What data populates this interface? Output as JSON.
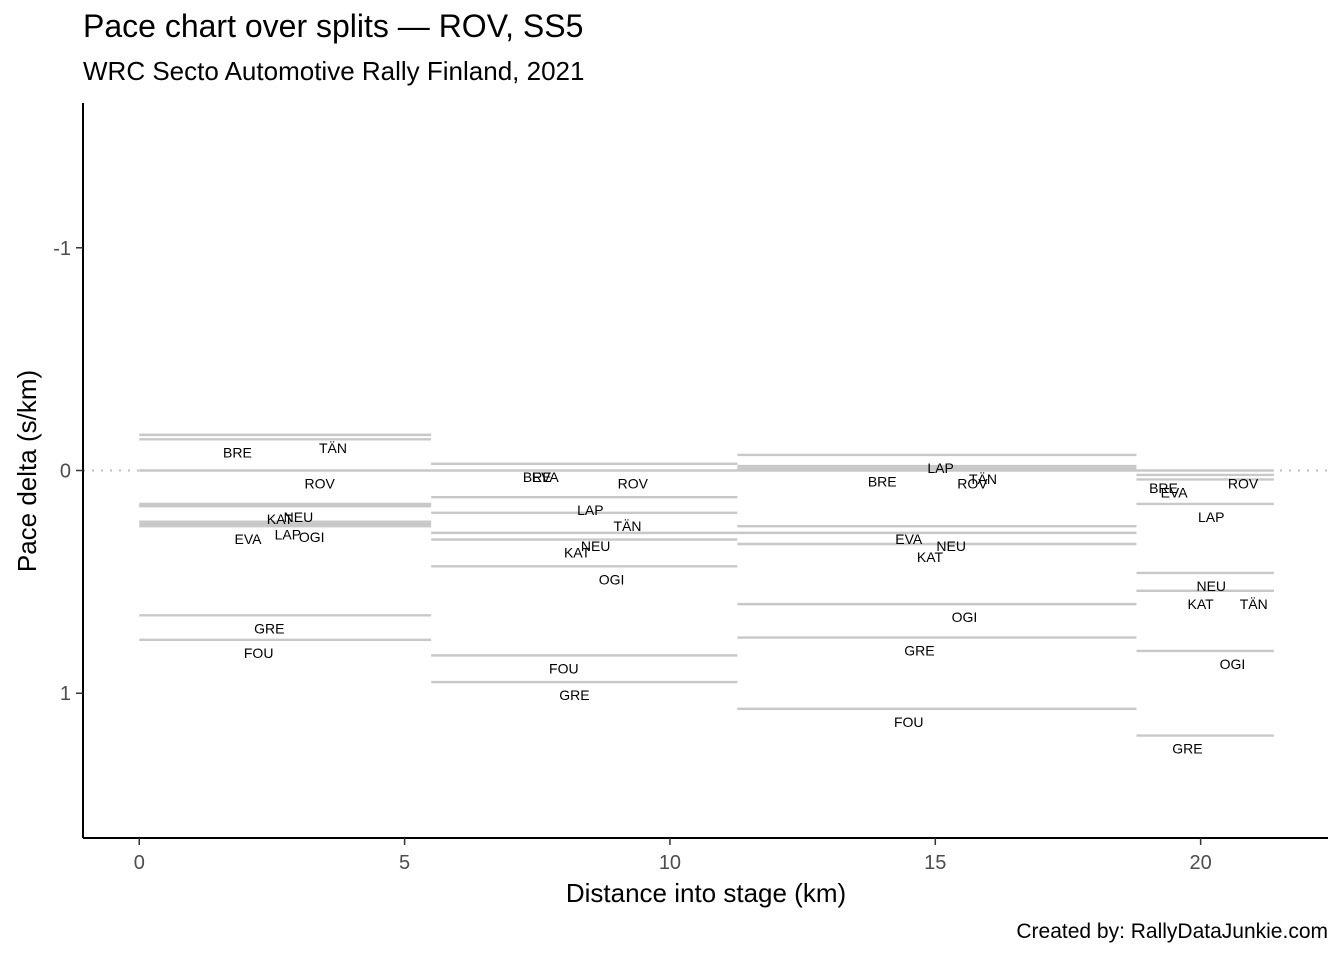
{
  "chart_data": {
    "type": "line",
    "title": "Pace chart over splits — ROV, SS5",
    "subtitle": "WRC Secto Automotive Rally Finland, 2021",
    "xlabel": "Distance into stage (km)",
    "ylabel": "Pace delta (s/km)",
    "caption": "Created by: RallyDataJunkie.com",
    "xlim": [
      -1.06,
      22.4
    ],
    "ylim": [
      1.65,
      -1.65
    ],
    "y_reversed": true,
    "x_ticks": [
      0,
      5,
      10,
      15,
      20
    ],
    "y_ticks": [
      -1,
      0,
      1
    ],
    "reference_line": {
      "y": 0,
      "style": "dotted"
    },
    "split_boundaries": [
      0,
      5.5,
      11.27,
      18.79,
      21.38
    ],
    "splits": [
      {
        "start": 0,
        "end": 5.5,
        "entries": [
          {
            "driver": "TÄN",
            "pace": -0.16,
            "label_x": 3.65
          },
          {
            "driver": "BRE",
            "pace": -0.14,
            "label_x": 1.85
          },
          {
            "driver": "ROV",
            "pace": 0.0,
            "label_x": 3.4
          },
          {
            "driver": "KAT",
            "pace": 0.16,
            "label_x": 2.65
          },
          {
            "driver": "NEU",
            "pace": 0.15,
            "label_x": 3.0
          },
          {
            "driver": "EVA",
            "pace": 0.25,
            "label_x": 2.05
          },
          {
            "driver": "LAP",
            "pace": 0.23,
            "label_x": 2.8
          },
          {
            "driver": "OGI",
            "pace": 0.24,
            "label_x": 3.25
          },
          {
            "driver": "GRE",
            "pace": 0.65,
            "label_x": 2.45
          },
          {
            "driver": "FOU",
            "pace": 0.76,
            "label_x": 2.25
          }
        ]
      },
      {
        "start": 5.5,
        "end": 11.27,
        "entries": [
          {
            "driver": "EVA",
            "pace": -0.03,
            "label_x": 7.65
          },
          {
            "driver": "BRE",
            "pace": -0.03,
            "label_x": 7.5
          },
          {
            "driver": "ROV",
            "pace": 0.0,
            "label_x": 9.3
          },
          {
            "driver": "LAP",
            "pace": 0.12,
            "label_x": 8.5
          },
          {
            "driver": "TÄN",
            "pace": 0.19,
            "label_x": 9.2
          },
          {
            "driver": "NEU",
            "pace": 0.28,
            "label_x": 8.6
          },
          {
            "driver": "KAT",
            "pace": 0.31,
            "label_x": 8.25
          },
          {
            "driver": "OGI",
            "pace": 0.43,
            "label_x": 8.9
          },
          {
            "driver": "FOU",
            "pace": 0.83,
            "label_x": 8.0
          },
          {
            "driver": "GRE",
            "pace": 0.95,
            "label_x": 8.2
          }
        ]
      },
      {
        "start": 11.27,
        "end": 18.79,
        "entries": [
          {
            "driver": "LAP",
            "pace": -0.07,
            "label_x": 15.1
          },
          {
            "driver": "TÄN",
            "pace": -0.02,
            "label_x": 15.9
          },
          {
            "driver": "BRE",
            "pace": -0.01,
            "label_x": 14.0
          },
          {
            "driver": "ROV",
            "pace": 0.0,
            "label_x": 15.7
          },
          {
            "driver": "EVA",
            "pace": 0.25,
            "label_x": 14.5
          },
          {
            "driver": "NEU",
            "pace": 0.28,
            "label_x": 15.3
          },
          {
            "driver": "KAT",
            "pace": 0.33,
            "label_x": 14.9
          },
          {
            "driver": "OGI",
            "pace": 0.6,
            "label_x": 15.55
          },
          {
            "driver": "GRE",
            "pace": 0.75,
            "label_x": 14.7
          },
          {
            "driver": "FOU",
            "pace": 1.07,
            "label_x": 14.5
          }
        ]
      },
      {
        "start": 18.79,
        "end": 21.38,
        "entries": [
          {
            "driver": "ROV",
            "pace": 0.0,
            "label_x": 20.8
          },
          {
            "driver": "BRE",
            "pace": 0.02,
            "label_x": 19.3
          },
          {
            "driver": "EVA",
            "pace": 0.04,
            "label_x": 19.5
          },
          {
            "driver": "LAP",
            "pace": 0.15,
            "label_x": 20.2
          },
          {
            "driver": "NEU",
            "pace": 0.46,
            "label_x": 20.2
          },
          {
            "driver": "KAT",
            "pace": 0.54,
            "label_x": 20.0
          },
          {
            "driver": "TÄN",
            "pace": 0.54,
            "label_x": 21.0
          },
          {
            "driver": "OGI",
            "pace": 0.81,
            "label_x": 20.6
          },
          {
            "driver": "GRE",
            "pace": 1.19,
            "label_x": 19.75
          }
        ]
      }
    ]
  }
}
